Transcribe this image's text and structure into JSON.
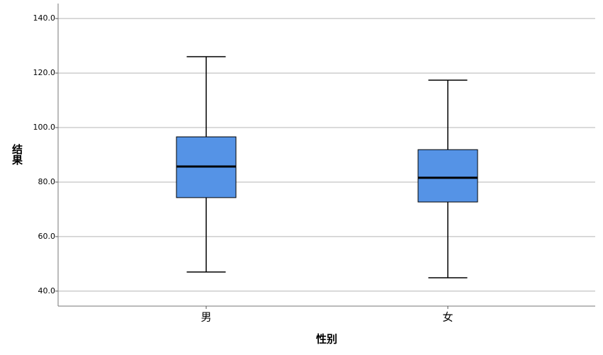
{
  "chart_data": {
    "type": "box",
    "x_label": "性别",
    "y_label": "结果",
    "categories": [
      "男",
      "女"
    ],
    "boxes": [
      {
        "min": 47.0,
        "q1": 74.3,
        "median": 85.7,
        "q3": 96.6,
        "max": 126.0
      },
      {
        "min": 44.9,
        "q1": 72.7,
        "median": 81.6,
        "q3": 91.9,
        "max": 117.4
      }
    ],
    "color": "#5593e6",
    "ylim": [
      34.5,
      145.5
    ],
    "yticks": [
      {
        "value": 40,
        "label": "40.0"
      },
      {
        "value": 60,
        "label": "60.0"
      },
      {
        "value": 80,
        "label": "80.0"
      },
      {
        "value": 100,
        "label": "100.0"
      },
      {
        "value": 120,
        "label": "120.0"
      },
      {
        "value": 140,
        "label": "140.0"
      }
    ],
    "grid": true
  }
}
